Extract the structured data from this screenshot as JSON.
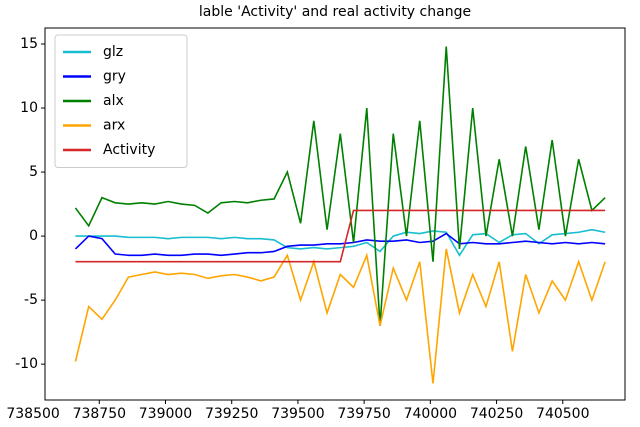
{
  "chart_data": {
    "type": "line",
    "title": "lable 'Activity' and real activity change",
    "x": [
      738660,
      738710,
      738760,
      738810,
      738860,
      738910,
      738960,
      739010,
      739060,
      739110,
      739160,
      739210,
      739260,
      739310,
      739360,
      739410,
      739460,
      739510,
      739560,
      739610,
      739660,
      739710,
      739760,
      739810,
      739860,
      739910,
      739960,
      740010,
      740060,
      740110,
      740160,
      740210,
      740260,
      740310,
      740360,
      740410,
      740460,
      740510,
      740560,
      740610,
      740660
    ],
    "series": [
      {
        "name": "glz",
        "color": "#17becf",
        "values": [
          0,
          0,
          0,
          0,
          -0.1,
          -0.1,
          -0.1,
          -0.2,
          -0.1,
          -0.1,
          -0.1,
          -0.2,
          -0.1,
          -0.2,
          -0.2,
          -0.3,
          -0.9,
          -1.0,
          -0.9,
          -1.0,
          -0.9,
          -0.8,
          -0.5,
          -1.2,
          0,
          0.3,
          0.2,
          0.4,
          0.3,
          -1.5,
          0.1,
          0.2,
          -0.5,
          0.1,
          0.2,
          -0.6,
          0.1,
          0.2,
          0.3,
          0.5,
          0.3
        ]
      },
      {
        "name": "gry",
        "color": "#0000ff",
        "values": [
          -1,
          0,
          -0.2,
          -1.4,
          -1.5,
          -1.5,
          -1.4,
          -1.5,
          -1.5,
          -1.4,
          -1.4,
          -1.5,
          -1.4,
          -1.3,
          -1.3,
          -1.2,
          -0.8,
          -0.7,
          -0.7,
          -0.6,
          -0.6,
          -0.5,
          -0.3,
          -0.4,
          -0.4,
          -0.3,
          -0.5,
          -0.4,
          0.2,
          -0.6,
          -0.5,
          -0.6,
          -0.6,
          -0.5,
          -0.4,
          -0.5,
          -0.6,
          -0.5,
          -0.6,
          -0.5,
          -0.6
        ]
      },
      {
        "name": "alx",
        "color": "#008000",
        "values": [
          2.2,
          0.8,
          3,
          2.6,
          2.5,
          2.6,
          2.5,
          2.7,
          2.5,
          2.4,
          1.8,
          2.6,
          2.7,
          2.6,
          2.8,
          2.9,
          5,
          1,
          9,
          0.5,
          8,
          -0.5,
          10,
          -7,
          8,
          0,
          9,
          -2,
          14.8,
          -1,
          10,
          0,
          6,
          0,
          7,
          0.5,
          7.5,
          0,
          6,
          2,
          3
        ]
      },
      {
        "name": "arx",
        "color": "#ffa500",
        "values": [
          -9.8,
          -5.5,
          -6.5,
          -5,
          -3.2,
          -3,
          -2.8,
          -3,
          -2.9,
          -3,
          -3.3,
          -3.1,
          -3,
          -3.2,
          -3.5,
          -3.2,
          -1.5,
          -5,
          -2,
          -6,
          -3,
          -4,
          -1.5,
          -7,
          -2.5,
          -5,
          -2,
          -11.5,
          -1,
          -6,
          -3,
          -5.5,
          -2,
          -9,
          -3,
          -6,
          -3.5,
          -5,
          -2,
          -5,
          -2
        ]
      },
      {
        "name": "Activity",
        "color": "#d62728",
        "values": [
          -2,
          -2,
          -2,
          -2,
          -2,
          -2,
          -2,
          -2,
          -2,
          -2,
          -2,
          -2,
          -2,
          -2,
          -2,
          -2,
          -2,
          -2,
          -2,
          -2,
          -2,
          2,
          2,
          2,
          2,
          2,
          2,
          2,
          2,
          2,
          2,
          2,
          2,
          2,
          2,
          2,
          2,
          2,
          2,
          2,
          2
        ]
      }
    ],
    "xlim": [
      738545,
      740735
    ],
    "ylim": [
      -12.8,
      16.25
    ],
    "xticks": [
      738500,
      738750,
      739000,
      739250,
      739500,
      739750,
      740000,
      740250,
      740500
    ],
    "yticks": [
      -10,
      -5,
      0,
      5,
      10,
      15
    ],
    "legend": "upper left",
    "grid": false
  }
}
